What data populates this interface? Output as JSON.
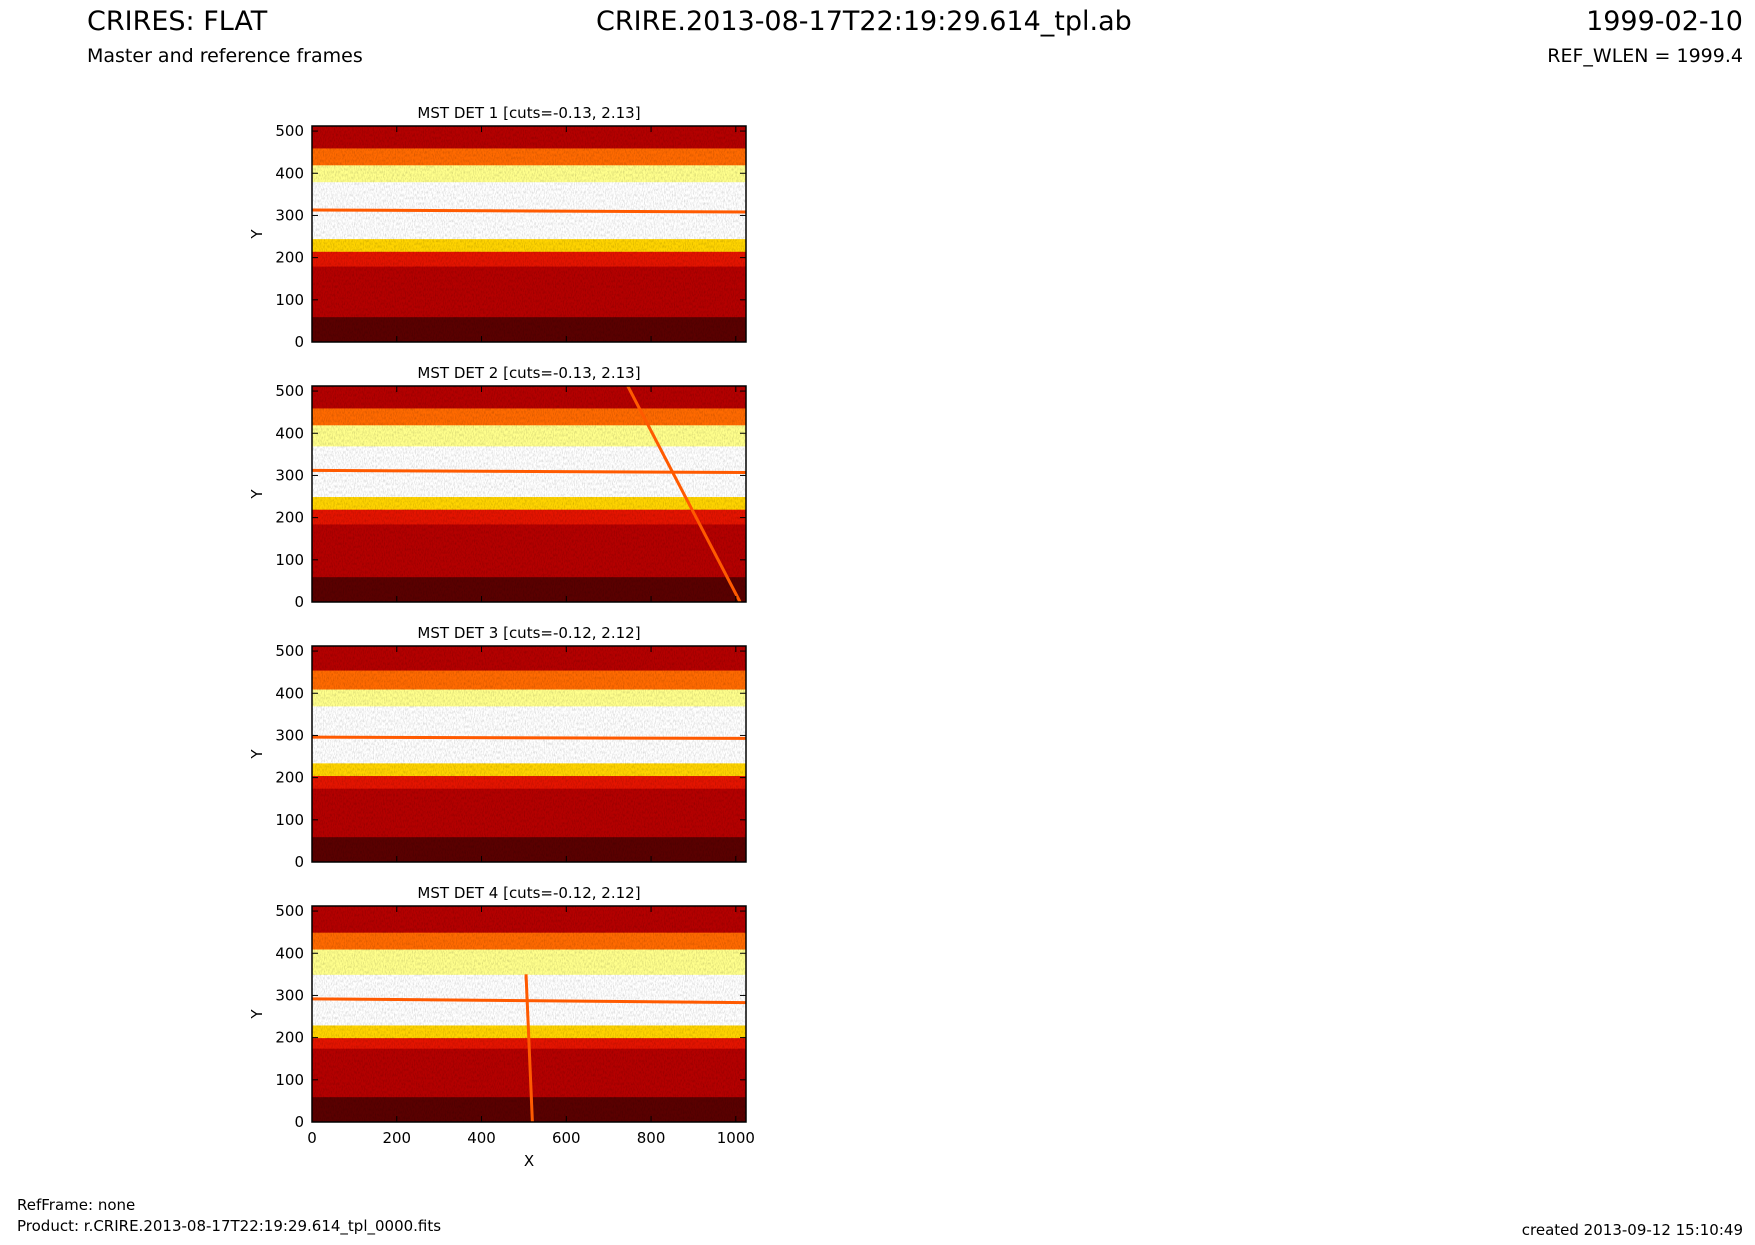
{
  "header": {
    "title_left": "CRIRES: FLAT",
    "title_center": "CRIRE.2013-08-17T22:19:29.614_tpl.ab",
    "title_right": "1999-02-10",
    "subtitle_left": "Master and reference frames",
    "subtitle_right": "REF_WLEN = 1999.4"
  },
  "footer": {
    "ref_frame": "RefFrame: none",
    "product": "Product: r.CRIRE.2013-08-17T22:19:29.614_tpl_0000.fits",
    "created": "created 2013-09-12 15:10:49"
  },
  "colors": {
    "dark": "#5a0000",
    "red": "#b40000",
    "bright_red": "#e41400",
    "orange": "#ff6a00",
    "yellow": "#ffd400",
    "pale_yellow": "#ffff8c",
    "white": "#ffffff",
    "trace_line": "#ff5a00"
  },
  "chart_data": [
    {
      "type": "heatmap",
      "title": "MST DET 1 [cuts=-0.13, 2.13]",
      "ylabel": "Y",
      "xlabel": "",
      "xlim": [
        0,
        1024
      ],
      "ylim": [
        0,
        512
      ],
      "xticks": [
        0,
        200,
        400,
        600,
        800,
        1000
      ],
      "yticks": [
        0,
        100,
        200,
        300,
        400,
        500
      ],
      "colormap": "hot",
      "cuts": [
        -0.13,
        2.13
      ],
      "bands": [
        {
          "y0": 0,
          "y1": 60,
          "level": "dark"
        },
        {
          "y0": 60,
          "y1": 180,
          "level": "red"
        },
        {
          "y0": 180,
          "y1": 215,
          "level": "bright_red"
        },
        {
          "y0": 215,
          "y1": 245,
          "level": "yellow"
        },
        {
          "y0": 245,
          "y1": 380,
          "level": "white"
        },
        {
          "y0": 380,
          "y1": 420,
          "level": "pale_yellow"
        },
        {
          "y0": 420,
          "y1": 460,
          "level": "orange"
        },
        {
          "y0": 460,
          "y1": 512,
          "level": "red"
        }
      ],
      "traces": [
        {
          "x": [
            0,
            1024
          ],
          "y": [
            313,
            308
          ]
        }
      ]
    },
    {
      "type": "heatmap",
      "title": "MST DET 2 [cuts=-0.13, 2.13]",
      "ylabel": "Y",
      "xlabel": "",
      "xlim": [
        0,
        1024
      ],
      "ylim": [
        0,
        512
      ],
      "xticks": [
        0,
        200,
        400,
        600,
        800,
        1000
      ],
      "yticks": [
        0,
        100,
        200,
        300,
        400,
        500
      ],
      "colormap": "hot",
      "cuts": [
        -0.13,
        2.13
      ],
      "bands": [
        {
          "y0": 0,
          "y1": 60,
          "level": "dark"
        },
        {
          "y0": 60,
          "y1": 185,
          "level": "red"
        },
        {
          "y0": 185,
          "y1": 220,
          "level": "bright_red"
        },
        {
          "y0": 220,
          "y1": 250,
          "level": "yellow"
        },
        {
          "y0": 250,
          "y1": 370,
          "level": "white"
        },
        {
          "y0": 370,
          "y1": 420,
          "level": "pale_yellow"
        },
        {
          "y0": 420,
          "y1": 460,
          "level": "orange"
        },
        {
          "y0": 460,
          "y1": 512,
          "level": "red"
        }
      ],
      "traces": [
        {
          "x": [
            0,
            1024
          ],
          "y": [
            312,
            307
          ]
        },
        {
          "x": [
            745,
            1010
          ],
          "y": [
            512,
            0
          ]
        }
      ]
    },
    {
      "type": "heatmap",
      "title": "MST DET 3 [cuts=-0.12, 2.12]",
      "ylabel": "Y",
      "xlabel": "",
      "xlim": [
        0,
        1024
      ],
      "ylim": [
        0,
        512
      ],
      "xticks": [
        0,
        200,
        400,
        600,
        800,
        1000
      ],
      "yticks": [
        0,
        100,
        200,
        300,
        400,
        500
      ],
      "colormap": "hot",
      "cuts": [
        -0.12,
        2.12
      ],
      "bands": [
        {
          "y0": 0,
          "y1": 60,
          "level": "dark"
        },
        {
          "y0": 60,
          "y1": 175,
          "level": "red"
        },
        {
          "y0": 175,
          "y1": 205,
          "level": "bright_red"
        },
        {
          "y0": 205,
          "y1": 235,
          "level": "yellow"
        },
        {
          "y0": 235,
          "y1": 370,
          "level": "white"
        },
        {
          "y0": 370,
          "y1": 410,
          "level": "pale_yellow"
        },
        {
          "y0": 410,
          "y1": 455,
          "level": "orange"
        },
        {
          "y0": 455,
          "y1": 512,
          "level": "red"
        }
      ],
      "traces": [
        {
          "x": [
            0,
            1024
          ],
          "y": [
            296,
            293
          ]
        }
      ]
    },
    {
      "type": "heatmap",
      "title": "MST DET 4 [cuts=-0.12, 2.12]",
      "ylabel": "Y",
      "xlabel": "X",
      "xlim": [
        0,
        1024
      ],
      "ylim": [
        0,
        512
      ],
      "xticks": [
        0,
        200,
        400,
        600,
        800,
        1000
      ],
      "yticks": [
        0,
        100,
        200,
        300,
        400,
        500
      ],
      "colormap": "hot",
      "cuts": [
        -0.12,
        2.12
      ],
      "bands": [
        {
          "y0": 0,
          "y1": 60,
          "level": "dark"
        },
        {
          "y0": 60,
          "y1": 175,
          "level": "red"
        },
        {
          "y0": 175,
          "y1": 200,
          "level": "bright_red"
        },
        {
          "y0": 200,
          "y1": 230,
          "level": "yellow"
        },
        {
          "y0": 230,
          "y1": 350,
          "level": "white"
        },
        {
          "y0": 350,
          "y1": 410,
          "level": "pale_yellow"
        },
        {
          "y0": 410,
          "y1": 450,
          "level": "orange"
        },
        {
          "y0": 450,
          "y1": 512,
          "level": "red"
        }
      ],
      "traces": [
        {
          "x": [
            0,
            1024
          ],
          "y": [
            292,
            283
          ]
        },
        {
          "x": [
            505,
            520
          ],
          "y": [
            350,
            0
          ]
        }
      ]
    }
  ]
}
